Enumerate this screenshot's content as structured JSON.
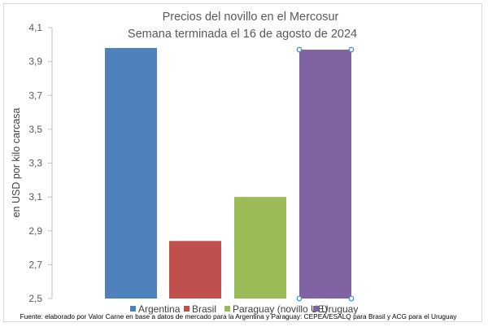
{
  "chart_data": {
    "type": "bar",
    "title": "Precios del novillo en el Mercosur",
    "subtitle": "Semana terminada el 16 de agosto de 2024",
    "xlabel": "",
    "ylabel": "en USD por kilo carcasa",
    "ylim": [
      2.5,
      4.1
    ],
    "ticks": [
      "4,1",
      "3,9",
      "3,7",
      "3,5",
      "3,3",
      "3,1",
      "2,9",
      "2,7",
      "2,5"
    ],
    "grid": false,
    "legend_position": "bottom",
    "series": [
      {
        "name": "Argentina",
        "value": 3.98,
        "color": "#4f81bd"
      },
      {
        "name": "Brasil",
        "value": 2.84,
        "color": "#c0504d"
      },
      {
        "name": "Paraguay (novillo UE)",
        "value": 3.1,
        "color": "#9bbb59"
      },
      {
        "name": "Uruguay",
        "value": 3.97,
        "color": "#8064a2"
      }
    ],
    "source": "Fuente: elaborado por Valor Carne en base a datos de mercado para la Argentina y Paraguay: CEPEA/ESALQ para Brasil y ACG para el Uruguay"
  }
}
